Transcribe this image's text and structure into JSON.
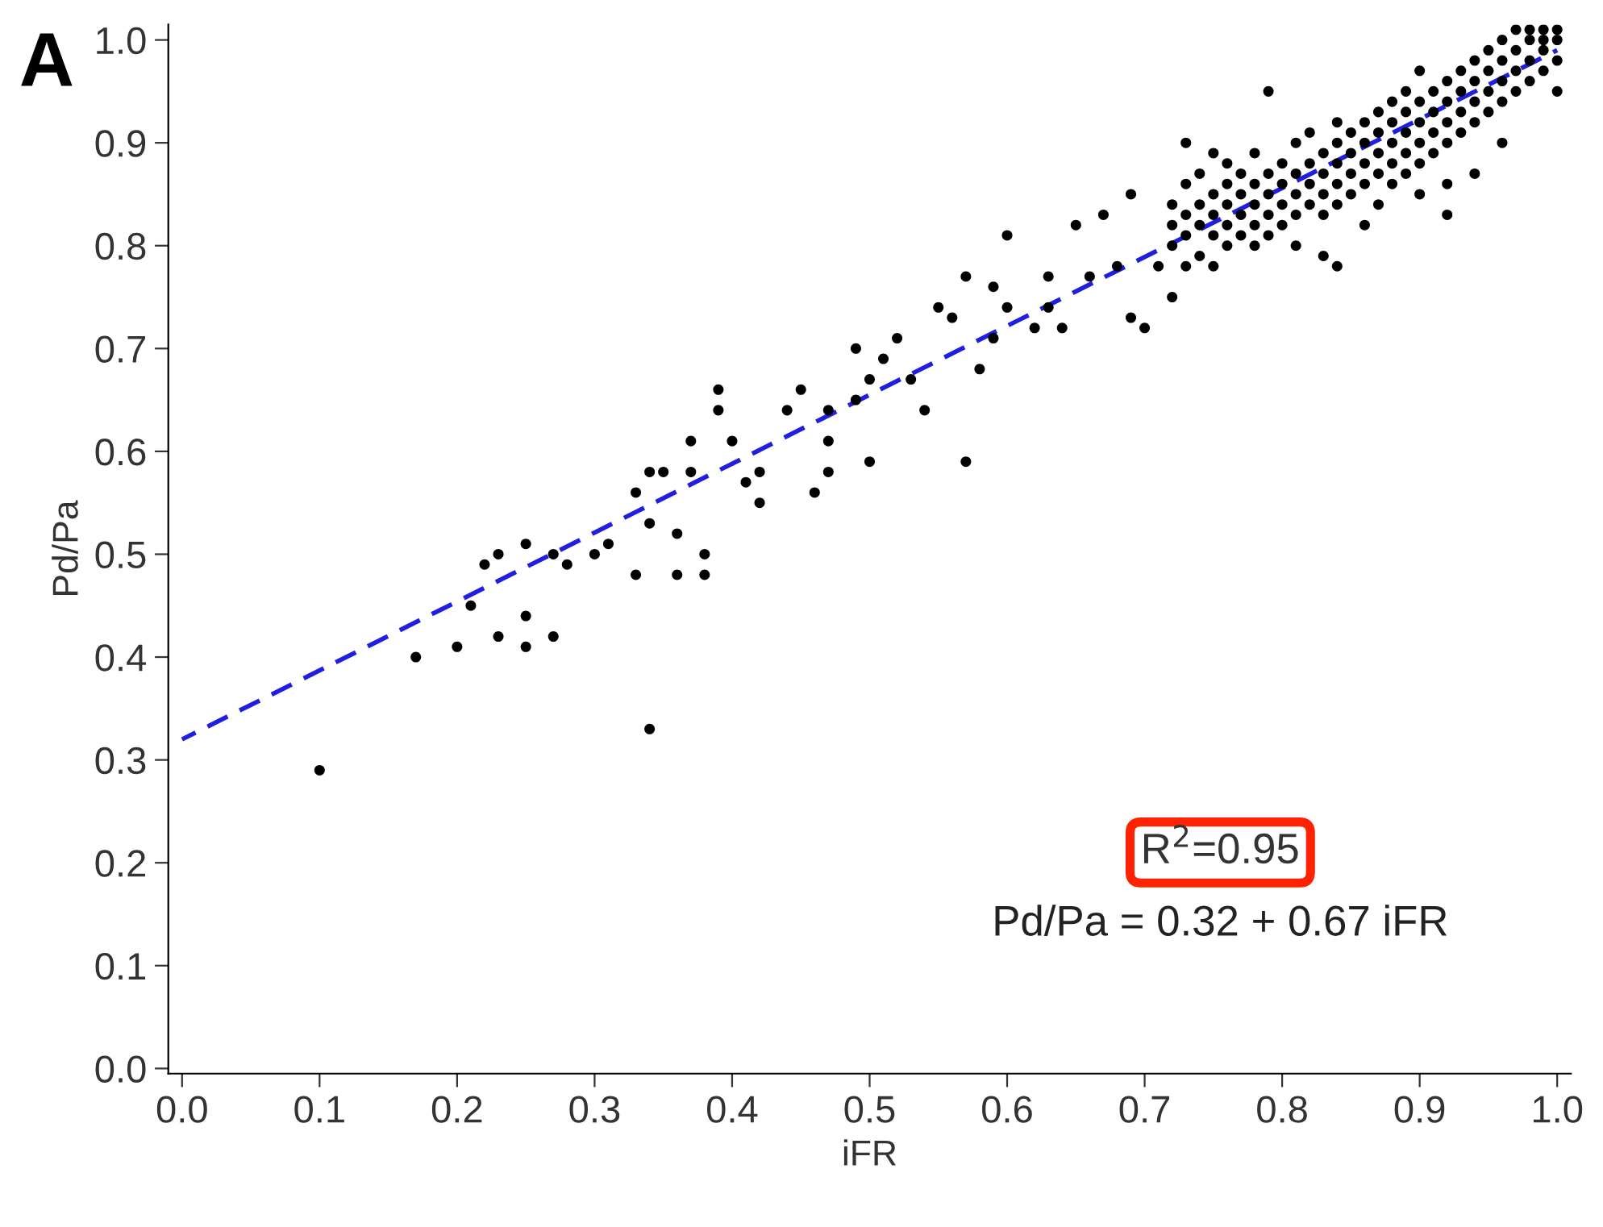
{
  "chart_data": {
    "type": "scatter",
    "title": "A",
    "xlabel": "iFR",
    "ylabel": "Pd/Pa",
    "xlim": [
      -0.01,
      1.01
    ],
    "ylim": [
      -0.005,
      1.015
    ],
    "xticks": [
      {
        "value": 0,
        "label": "0.0"
      },
      0.1,
      0.2,
      0.3,
      0.4,
      0.5,
      0.6,
      0.7,
      0.8,
      0.9,
      {
        "value": 1,
        "label": "1.0"
      }
    ],
    "yticks": [
      {
        "value": 0,
        "label": "0.0"
      },
      0.1,
      0.2,
      0.3,
      0.4,
      0.5,
      0.6,
      0.7,
      0.8,
      0.9,
      {
        "value": 1,
        "label": "1.0"
      }
    ],
    "grid": false,
    "legend": false,
    "annotations": [
      "R$^{2}$=0.95",
      "Pd/Pa = 0.32 + 0.67 iFR"
    ],
    "series": [
      {
        "color": "#000000",
        "marker": "circle",
        "x": [
          0.1,
          0.17,
          0.2,
          0.21,
          0.22,
          0.23,
          0.23,
          0.25,
          0.25,
          0.25,
          0.27,
          0.27,
          0.28,
          0.3,
          0.31,
          0.33,
          0.33,
          0.34,
          0.34,
          0.34,
          0.35,
          0.36,
          0.36,
          0.37,
          0.38,
          0.38,
          0.37,
          0.39,
          0.39,
          0.4,
          0.41,
          0.42,
          0.44,
          0.42,
          0.45,
          0.46,
          0.47,
          0.47,
          0.47,
          0.49,
          0.49,
          0.5,
          0.5,
          0.51,
          0.52,
          0.53,
          0.54,
          0.55,
          0.56,
          0.57,
          0.57,
          0.58,
          0.59,
          0.59,
          0.6,
          0.6,
          0.62,
          0.63,
          0.63,
          0.64,
          0.65,
          0.66,
          0.67,
          0.68,
          0.69,
          0.7,
          0.69,
          0.71,
          0.72,
          0.72,
          0.72,
          0.72,
          0.73,
          0.73,
          0.73,
          0.73,
          0.73,
          0.74,
          0.74,
          0.74,
          0.74,
          0.75,
          0.75,
          0.75,
          0.75,
          0.75,
          0.76,
          0.76,
          0.76,
          0.76,
          0.76,
          0.77,
          0.77,
          0.77,
          0.77,
          0.78,
          0.78,
          0.78,
          0.78,
          0.78,
          0.79,
          0.79,
          0.79,
          0.79,
          0.79,
          0.8,
          0.8,
          0.8,
          0.8,
          0.81,
          0.81,
          0.81,
          0.81,
          0.81,
          0.82,
          0.82,
          0.82,
          0.82,
          0.83,
          0.83,
          0.83,
          0.83,
          0.83,
          0.84,
          0.84,
          0.84,
          0.84,
          0.84,
          0.84,
          0.85,
          0.85,
          0.85,
          0.85,
          0.86,
          0.86,
          0.86,
          0.86,
          0.86,
          0.87,
          0.87,
          0.87,
          0.87,
          0.87,
          0.88,
          0.88,
          0.88,
          0.88,
          0.88,
          0.89,
          0.89,
          0.89,
          0.89,
          0.89,
          0.9,
          0.9,
          0.9,
          0.9,
          0.9,
          0.9,
          0.91,
          0.91,
          0.91,
          0.91,
          0.92,
          0.92,
          0.92,
          0.92,
          0.92,
          0.92,
          0.93,
          0.93,
          0.93,
          0.93,
          0.94,
          0.94,
          0.94,
          0.94,
          0.94,
          0.95,
          0.95,
          0.95,
          0.95,
          0.96,
          0.96,
          0.96,
          0.96,
          0.96,
          0.97,
          0.97,
          0.97,
          0.97,
          0.98,
          0.98,
          0.98,
          0.98,
          0.99,
          0.99,
          0.99,
          0.99,
          1.0,
          1.0,
          1.0,
          1.0
        ],
        "values": [
          0.29,
          0.4,
          0.41,
          0.45,
          0.49,
          0.5,
          0.42,
          0.44,
          0.41,
          0.51,
          0.42,
          0.5,
          0.49,
          0.5,
          0.51,
          0.48,
          0.56,
          0.33,
          0.58,
          0.53,
          0.58,
          0.52,
          0.48,
          0.61,
          0.48,
          0.5,
          0.58,
          0.66,
          0.64,
          0.61,
          0.57,
          0.55,
          0.64,
          0.58,
          0.66,
          0.56,
          0.58,
          0.64,
          0.61,
          0.65,
          0.7,
          0.59,
          0.67,
          0.69,
          0.71,
          0.67,
          0.64,
          0.74,
          0.73,
          0.59,
          0.77,
          0.68,
          0.71,
          0.76,
          0.74,
          0.81,
          0.72,
          0.74,
          0.77,
          0.72,
          0.82,
          0.77,
          0.83,
          0.78,
          0.73,
          0.72,
          0.85,
          0.78,
          0.75,
          0.8,
          0.82,
          0.84,
          0.78,
          0.81,
          0.83,
          0.86,
          0.9,
          0.79,
          0.82,
          0.84,
          0.87,
          0.78,
          0.81,
          0.83,
          0.85,
          0.89,
          0.8,
          0.82,
          0.84,
          0.86,
          0.88,
          0.81,
          0.83,
          0.85,
          0.87,
          0.8,
          0.82,
          0.84,
          0.86,
          0.89,
          0.81,
          0.83,
          0.85,
          0.87,
          0.95,
          0.82,
          0.84,
          0.86,
          0.88,
          0.8,
          0.83,
          0.85,
          0.87,
          0.9,
          0.84,
          0.86,
          0.88,
          0.91,
          0.79,
          0.83,
          0.85,
          0.87,
          0.89,
          0.78,
          0.84,
          0.86,
          0.88,
          0.9,
          0.92,
          0.85,
          0.87,
          0.89,
          0.91,
          0.82,
          0.86,
          0.88,
          0.9,
          0.92,
          0.84,
          0.87,
          0.89,
          0.91,
          0.93,
          0.86,
          0.88,
          0.9,
          0.92,
          0.94,
          0.87,
          0.89,
          0.91,
          0.93,
          0.95,
          0.85,
          0.88,
          0.9,
          0.92,
          0.94,
          0.97,
          0.89,
          0.91,
          0.93,
          0.95,
          0.83,
          0.86,
          0.9,
          0.92,
          0.94,
          0.96,
          0.91,
          0.93,
          0.95,
          0.97,
          0.87,
          0.92,
          0.94,
          0.96,
          0.98,
          0.93,
          0.95,
          0.97,
          0.99,
          0.9,
          0.94,
          0.96,
          0.98,
          1.0,
          0.95,
          0.97,
          0.99,
          1.01,
          0.96,
          0.98,
          1.0,
          1.01,
          0.97,
          0.99,
          1.0,
          1.01,
          0.95,
          0.98,
          1.0,
          1.01
        ]
      },
      {
        "type": "line",
        "color": "#1f1fe0",
        "line_style": "dashed",
        "marker": "none",
        "x": [
          0,
          1
        ],
        "values": [
          0.32,
          0.99
        ]
      }
    ]
  }
}
